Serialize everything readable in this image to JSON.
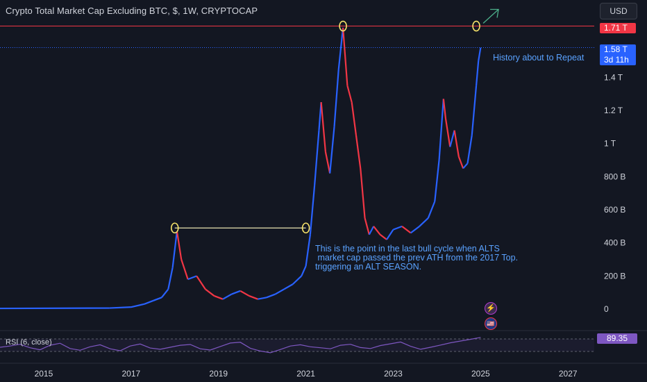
{
  "header": {
    "title": "Crypto Total Market Cap Excluding BTC, $, 1W, CRYPTOCAP",
    "currency": "USD"
  },
  "price_scale": {
    "ath_label": "1.71 T",
    "current_price": "1.58 T",
    "countdown": "3d 11h",
    "ticks": [
      "1.4 T",
      "1.2 T",
      "1 T",
      "800 B",
      "600 B",
      "400 B",
      "200 B",
      "0"
    ]
  },
  "time_axis": {
    "ticks": [
      "2015",
      "2017",
      "2019",
      "2021",
      "2023",
      "2025",
      "2027"
    ]
  },
  "annotations": {
    "history": "History about to Repeat",
    "cycle": "This is the point in the last bull cycle when ALTS\n market cap passed the prev ATH from the 2017 Top.\ntriggering an ALT SEASON."
  },
  "rsi": {
    "label": "RSI (6, close)",
    "value": "89.35"
  },
  "colors": {
    "up": "#2962ff",
    "down": "#f23645",
    "rsi": "#7e57c2",
    "annotation": "#5aa2ff",
    "marker": "#f7e36a",
    "background": "#131722"
  },
  "icons": {
    "flash": "flash-icon",
    "flag": "us-flag-icon",
    "arrow": "arrow-up-right-icon"
  },
  "chart_data": {
    "type": "line",
    "title": "Crypto Total Market Cap Excluding BTC, $, 1W, CRYPTOCAP",
    "xlabel": "",
    "ylabel": "",
    "xlim": [
      2014.0,
      2027.6
    ],
    "ylim": [
      0,
      1.75
    ],
    "y_unit": "T USD",
    "series": [
      {
        "values_x": [
          2014.0,
          2016.5,
          2017.0,
          2017.3,
          2017.5,
          2017.7,
          2017.85,
          2017.95,
          2018.05,
          2018.15,
          2018.3,
          2018.5,
          2018.7,
          2018.9,
          2019.1,
          2019.3,
          2019.5,
          2019.7,
          2019.9,
          2020.1,
          2020.3,
          2020.5,
          2020.7,
          2020.9,
          2021.0,
          2021.1,
          2021.2,
          2021.3,
          2021.35,
          2021.45,
          2021.55,
          2021.65,
          2021.75,
          2021.85,
          2021.95,
          2022.05,
          2022.15,
          2022.25,
          2022.35,
          2022.45,
          2022.55,
          2022.7,
          2022.85,
          2023.0,
          2023.2,
          2023.4,
          2023.6,
          2023.8,
          2023.95,
          2024.05,
          2024.15,
          2024.2,
          2024.3,
          2024.4,
          2024.5,
          2024.6,
          2024.7,
          2024.8,
          2024.9,
          2024.95,
          2025.0
        ],
        "values_y": [
          0.004,
          0.006,
          0.012,
          0.03,
          0.05,
          0.07,
          0.12,
          0.25,
          0.47,
          0.3,
          0.18,
          0.2,
          0.12,
          0.08,
          0.06,
          0.09,
          0.11,
          0.08,
          0.06,
          0.07,
          0.09,
          0.12,
          0.15,
          0.2,
          0.26,
          0.45,
          0.75,
          1.08,
          1.25,
          0.95,
          0.82,
          1.1,
          1.45,
          1.7,
          1.35,
          1.25,
          1.05,
          0.85,
          0.55,
          0.45,
          0.5,
          0.45,
          0.42,
          0.48,
          0.5,
          0.46,
          0.5,
          0.55,
          0.65,
          0.9,
          1.27,
          1.15,
          0.98,
          1.08,
          0.92,
          0.85,
          0.88,
          1.05,
          1.35,
          1.5,
          1.58
        ]
      }
    ],
    "rsi_series": [
      50,
      55,
      62,
      48,
      40,
      58,
      66,
      45,
      38,
      52,
      60,
      44,
      36,
      55,
      63,
      47,
      42,
      50,
      58,
      61,
      44,
      39,
      53,
      67,
      70,
      46,
      35,
      28,
      41,
      55,
      60,
      52,
      48,
      44,
      58,
      62,
      49,
      45,
      57,
      64,
      71,
      54,
      42,
      50,
      59,
      68,
      75,
      82,
      89.35
    ],
    "horizontal_levels": [
      1.71,
      1.58
    ],
    "markers": [
      [
        2018.0,
        0.49
      ],
      [
        2021.0,
        0.49
      ],
      [
        2021.85,
        1.71
      ],
      [
        2024.9,
        1.71
      ]
    ],
    "grid": false,
    "legend": "none"
  }
}
